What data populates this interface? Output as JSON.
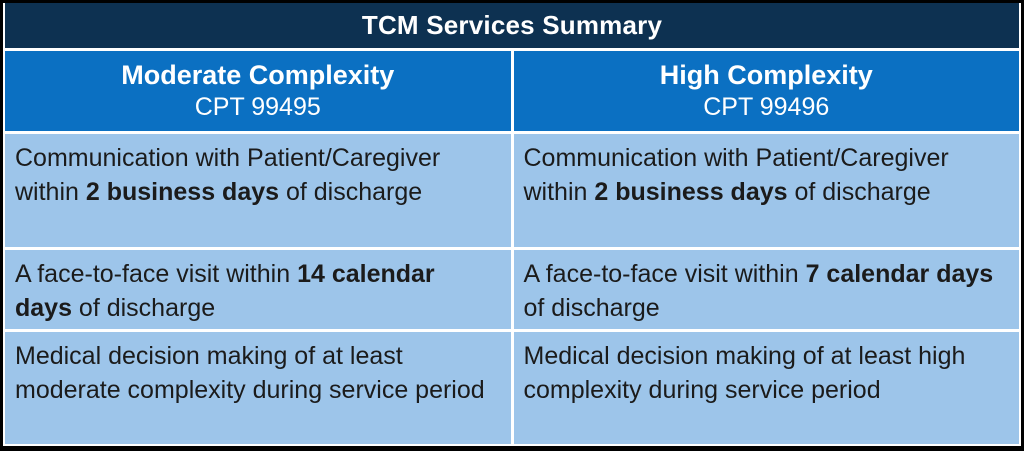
{
  "title": "TCM Services Summary",
  "columns": [
    {
      "name": "Moderate Complexity",
      "cpt": "CPT 99495"
    },
    {
      "name": "High Complexity",
      "cpt": "CPT 99496"
    }
  ],
  "rows": [
    {
      "left": {
        "pre": "Communication with Patient/Caregiver within ",
        "bold": "2 business days",
        "post": " of discharge"
      },
      "right": {
        "pre": "Communication with Patient/Caregiver within ",
        "bold": "2 business days",
        "post": " of discharge"
      }
    },
    {
      "left": {
        "pre": "A face-to-face visit within ",
        "bold": "14 calendar days",
        "post": " of discharge"
      },
      "right": {
        "pre": "A face-to-face visit within ",
        "bold": "7 calendar days",
        "post": " of discharge"
      }
    },
    {
      "left": {
        "pre": "Medical decision making of at least moderate complexity during service period",
        "bold": "",
        "post": ""
      },
      "right": {
        "pre": "Medical decision making of at least high complexity during service period",
        "bold": "",
        "post": ""
      }
    }
  ],
  "colors": {
    "outer_border": "#000000",
    "title_background": "#0d3151",
    "header_background": "#0b70c2",
    "body_background": "#9dc5ea",
    "header_text": "#ffffff",
    "body_text": "#1b1b1b",
    "gap": "#ffffff"
  }
}
